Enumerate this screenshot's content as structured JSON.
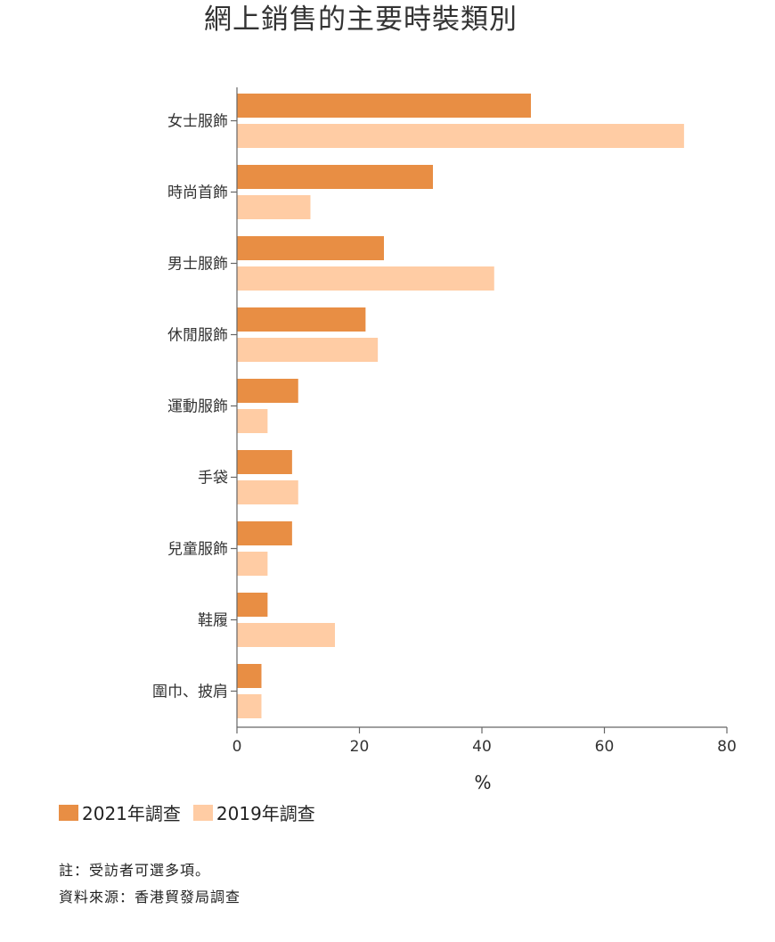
{
  "chart_data": {
    "type": "bar",
    "orientation": "horizontal",
    "title": "網上銷售的主要時裝類別",
    "xlabel": "%",
    "ylabel": "",
    "xlim": [
      0,
      80
    ],
    "xticks": [
      "0",
      "20",
      "40",
      "60",
      "80"
    ],
    "grid": false,
    "legend_position": "bottom-left",
    "categories": [
      "女士服飾",
      "時尚首飾",
      "男士服飾",
      "休閒服飾",
      "運動服飾",
      "手袋",
      "兒童服飾",
      "鞋履",
      "圍巾、披肩"
    ],
    "series": [
      {
        "name": "2021年調查",
        "color": "#E88E44",
        "values": [
          48,
          32,
          24,
          21,
          10,
          9,
          9,
          5,
          4
        ]
      },
      {
        "name": "2019年調查",
        "color": "#FFCCA4",
        "values": [
          73,
          12,
          42,
          23,
          5,
          10,
          5,
          16,
          4
        ]
      }
    ]
  },
  "notes": {
    "note": "註：受訪者可選多項。",
    "source": "資料來源：香港貿發局調查"
  }
}
